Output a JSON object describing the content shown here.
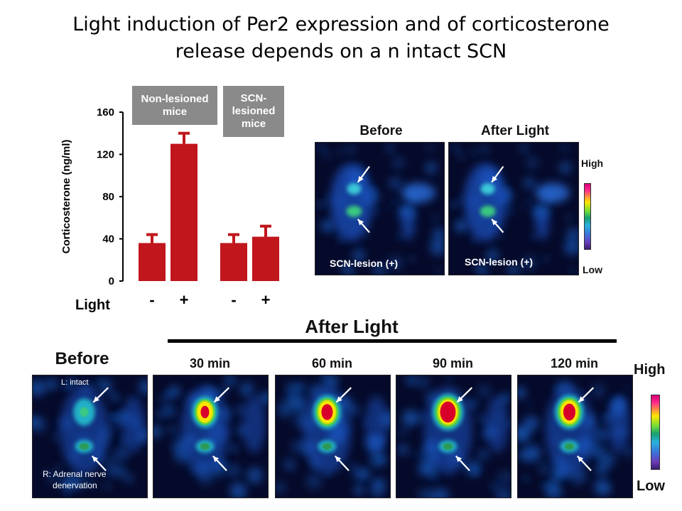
{
  "title": {
    "line1": "Light induction of Per2 expression and of corticosterone",
    "line2": "release depends on a n intact SCN"
  },
  "chart_data": {
    "type": "bar",
    "ylabel": "Corticosterone (ng/ml)",
    "yticks": [
      "160",
      "120",
      "80",
      "40",
      "0"
    ],
    "ylim": [
      0,
      160
    ],
    "xlabel": "Light",
    "groups": [
      {
        "label": "Non-lesioned mice",
        "bars": [
          {
            "light": "-",
            "value": 36,
            "error": 8
          },
          {
            "light": "+",
            "value": 130,
            "error": 10
          }
        ]
      },
      {
        "label": "SCN-lesioned mice",
        "bars": [
          {
            "light": "-",
            "value": 36,
            "error": 8
          },
          {
            "light": "+",
            "value": 42,
            "error": 10
          }
        ]
      }
    ],
    "bar_color": "#c0161c",
    "grid": false
  },
  "group_labels": {
    "nonlesioned": "Non-lesioned mice",
    "scnlesioned": "SCN- lesioned mice"
  },
  "top_panels": {
    "before": "Before",
    "after": "After Light",
    "lesion_label": "SCN-lesion (+)",
    "scale_high": "High",
    "scale_low": "Low"
  },
  "bottom_panels": {
    "after_light": "After Light",
    "headers": [
      "Before",
      "30 min",
      "60 min",
      "90 min",
      "120 min"
    ],
    "intact_label": "L: intact",
    "adrenal_label_1": "R: Adrenal nerve",
    "adrenal_label_2": "denervation",
    "scale_high": "High",
    "scale_low": "Low",
    "core_intensity": [
      0.15,
      0.55,
      0.75,
      1.0,
      0.8
    ]
  },
  "colors": {
    "bar": "#c0161c",
    "panel_bg": "#060a2a",
    "signal_blue": "#1f6ad8",
    "signal_hot": "#ffe600",
    "signal_core": "#d8002a"
  }
}
